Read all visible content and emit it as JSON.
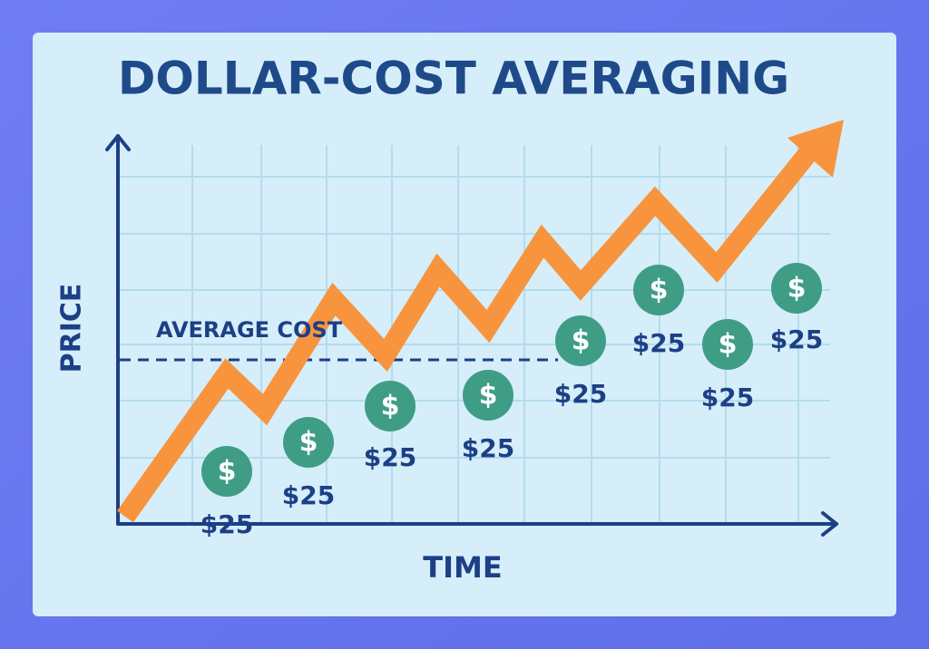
{
  "title": "DOLLAR-COST AVERAGING",
  "y_axis_label": "PRICE",
  "x_axis_label": "TIME",
  "annotation": "AVERAGE COST",
  "coins": [
    {
      "symbol": "$",
      "label": "$25"
    },
    {
      "symbol": "$",
      "label": "$25"
    },
    {
      "symbol": "$",
      "label": "$25"
    },
    {
      "symbol": "$",
      "label": "$25"
    },
    {
      "symbol": "$",
      "label": "$25"
    },
    {
      "symbol": "$",
      "label": "$25"
    },
    {
      "symbol": "$",
      "label": "$25"
    },
    {
      "symbol": "$",
      "label": "$25"
    }
  ]
}
